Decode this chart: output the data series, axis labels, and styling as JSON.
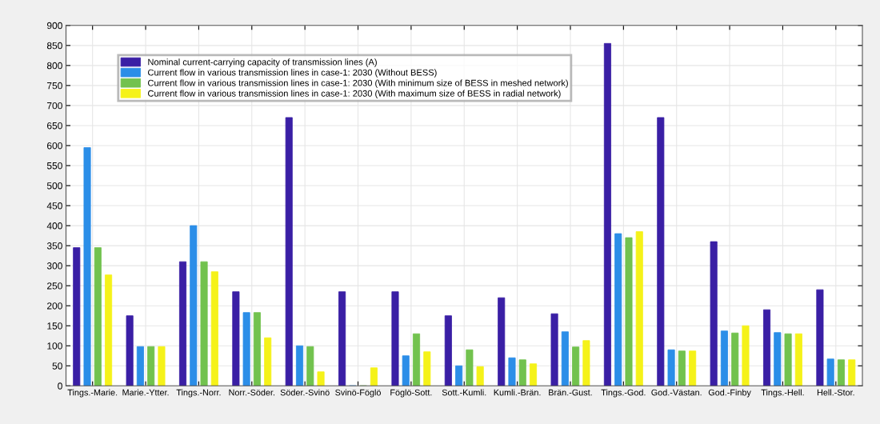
{
  "chart_data": {
    "type": "bar",
    "categories": [
      "Tings.-Marie.",
      "Marie.-Ytter.",
      "Tings.-Norr.",
      "Norr.-Söder.",
      "Söder.-Svinö",
      "Svinö-Föglö",
      "Föglö-Sott.",
      "Sott.-Kumli.",
      "Kumli.-Brän.",
      "Brän.-Gust.",
      "Tings.-God.",
      "God.-Västan.",
      "God.-Finby",
      "Tings.-Hell.",
      "Hell.-Stor."
    ],
    "series": [
      {
        "name": "Nominal current-carrying capacity of transmission lines (A)",
        "color": "#3a1fa5",
        "values": [
          345,
          175,
          310,
          235,
          670,
          235,
          235,
          175,
          220,
          180,
          855,
          670,
          360,
          190,
          240
        ]
      },
      {
        "name": "Current flow in various transmission lines in case-1: 2030 (Without BESS)",
        "color": "#2b8ee8",
        "values": [
          595,
          98,
          400,
          183,
          100,
          0,
          75,
          50,
          70,
          135,
          380,
          90,
          137,
          133,
          67
        ]
      },
      {
        "name": "Current flow in various transmission lines in case-1: 2030 (With minimum size of BESS in meshed network)",
        "color": "#72c24e",
        "values": [
          345,
          98,
          310,
          183,
          98,
          0,
          130,
          90,
          65,
          97,
          370,
          87,
          132,
          130,
          65
        ]
      },
      {
        "name": "Current flow in various transmission lines in case-1: 2030 (With maximum size of BESS in radial network)",
        "color": "#f5f219",
        "values": [
          277,
          98,
          285,
          120,
          35,
          45,
          85,
          48,
          55,
          113,
          385,
          87,
          150,
          130,
          65
        ]
      }
    ],
    "ylim": [
      0,
      900
    ],
    "yticks": [
      0,
      50,
      100,
      150,
      200,
      250,
      300,
      350,
      400,
      450,
      500,
      550,
      600,
      650,
      700,
      750,
      800,
      850,
      900
    ],
    "grid": true,
    "legend": "top left"
  }
}
